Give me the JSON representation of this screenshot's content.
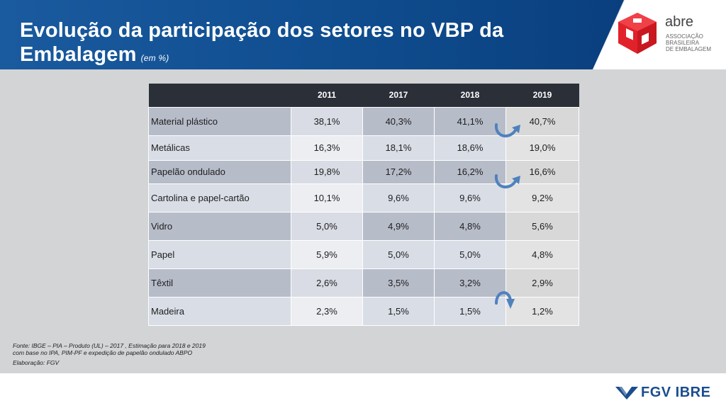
{
  "header": {
    "title_line1": "Evolução da participação dos setores no VBP da",
    "title_line2": "Embalagem",
    "title_unit": "(em %)"
  },
  "logo": {
    "name": "abre",
    "sub1": "ASSOCIAÇÃO",
    "sub2": "BRASILEIRA",
    "sub3": "DE EMBALAGEM",
    "icon": "abre-cube-icon",
    "color": "#e2222a"
  },
  "table": {
    "columns": [
      "",
      "2011",
      "2017",
      "2018",
      "2019"
    ],
    "rows": [
      {
        "label": "Material plástico",
        "v2011": "38,1%",
        "v2017": "40,3%",
        "v2018": "41,1%",
        "v2019": "40,7%"
      },
      {
        "label": "Metálicas",
        "v2011": "16,3%",
        "v2017": "18,1%",
        "v2018": "18,6%",
        "v2019": "19,0%"
      },
      {
        "label": "Papelão ondulado",
        "v2011": "19,8%",
        "v2017": "17,2%",
        "v2018": "16,2%",
        "v2019": "16,6%"
      },
      {
        "label": "Cartolina e papel-cartão",
        "v2011": "10,1%",
        "v2017": "9,6%",
        "v2018": "9,6%",
        "v2019": "9,2%"
      },
      {
        "label": "Vidro",
        "v2011": "5,0%",
        "v2017": "4,9%",
        "v2018": "4,8%",
        "v2019": "5,6%"
      },
      {
        "label": "Papel",
        "v2011": "5,9%",
        "v2017": "5,0%",
        "v2018": "5,0%",
        "v2019": "4,8%"
      },
      {
        "label": "Têxtil",
        "v2011": "2,6%",
        "v2017": "3,5%",
        "v2018": "3,2%",
        "v2019": "2,9%"
      },
      {
        "label": "Madeira",
        "v2011": "2,3%",
        "v2017": "1,5%",
        "v2018": "1,5%",
        "v2019": "1,2%"
      }
    ],
    "arrow_icon": "curved-arrow-icon",
    "arrow_color": "#4f81bd"
  },
  "footnote": {
    "line1": "Fonte: IBGE – PIA – Produto (UL) – 2017 , Estimação para 2018 e 2019",
    "line2": "com base no IPA, PIM-PF e expedição de papelão ondulado ABPO",
    "line3": "Elaboração: FGV"
  },
  "footer": {
    "brand": "FGV IBRE",
    "brand_color": "#1b4d8e"
  }
}
